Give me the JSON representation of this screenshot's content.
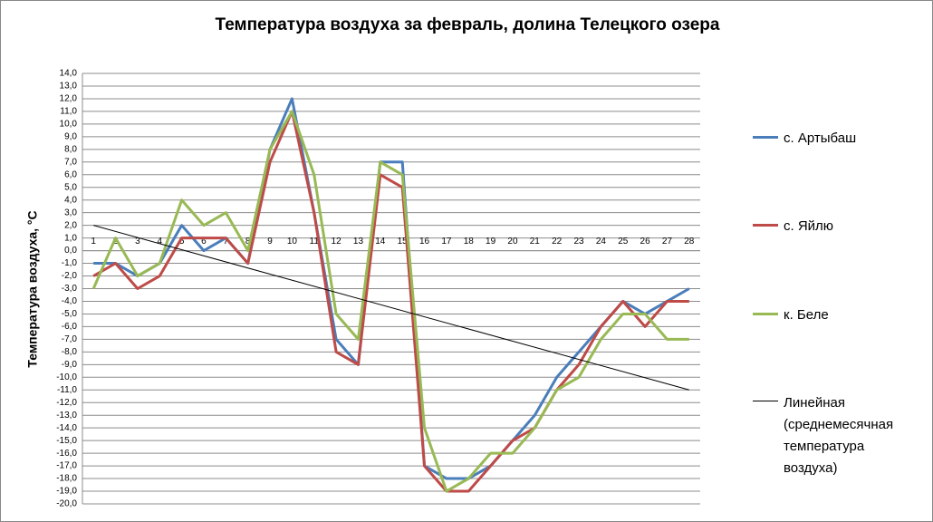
{
  "chart_data": {
    "type": "line",
    "title": "Температура воздуха за февраль, долина Телецкого озера",
    "y_label": "Температура воздуха, °С",
    "categories": [
      "1",
      "2",
      "3",
      "4",
      "5",
      "6",
      "7",
      "8",
      "9",
      "10",
      "11",
      "12",
      "13",
      "14",
      "15",
      "16",
      "17",
      "18",
      "19",
      "20",
      "21",
      "22",
      "23",
      "24",
      "25",
      "26",
      "27",
      "28"
    ],
    "series": [
      {
        "name": "с. Артыбаш",
        "color": "#4a7ebb",
        "values": [
          -1,
          -1,
          -2,
          -1,
          2,
          0,
          1,
          -1,
          8,
          12,
          3,
          -7,
          -9,
          7,
          7,
          -17,
          -18,
          -18,
          -17,
          -15,
          -13,
          -10,
          -8,
          -6,
          -4,
          -5,
          -4,
          -3
        ]
      },
      {
        "name": "с. Яйлю",
        "color": "#be4b48",
        "values": [
          -2,
          -1,
          -3,
          -2,
          1,
          1,
          1,
          -1,
          7,
          11,
          3,
          -8,
          -9,
          6,
          5,
          -17,
          -19,
          -19,
          -17,
          -15,
          -14,
          -11,
          -9,
          -6,
          -4,
          -6,
          -4,
          -4
        ]
      },
      {
        "name": "к. Беле",
        "color": "#98b954",
        "values": [
          -3,
          1,
          -2,
          -1,
          4,
          2,
          3,
          0,
          8,
          11,
          6,
          -5,
          -7,
          7,
          6,
          -14,
          -19,
          -18,
          -16,
          -16,
          -14,
          -11,
          -10,
          -7,
          -5,
          -5,
          -7,
          -7
        ]
      }
    ],
    "trendline": {
      "name": "Линейная (среднемесячная температура воздуха)",
      "color": "#000000",
      "values": [
        2,
        -11
      ]
    },
    "ylim": [
      -20,
      14
    ],
    "yticks": [
      {
        "value": 14,
        "label": "14,0"
      },
      {
        "value": 13,
        "label": "13,0"
      },
      {
        "value": 12,
        "label": "12,0"
      },
      {
        "value": 11,
        "label": "11,0"
      },
      {
        "value": 10,
        "label": "10,0"
      },
      {
        "value": 9,
        "label": "9,0"
      },
      {
        "value": 8,
        "label": "8,0"
      },
      {
        "value": 7,
        "label": "7,0"
      },
      {
        "value": 6,
        "label": "6,0"
      },
      {
        "value": 5,
        "label": "5,0"
      },
      {
        "value": 4,
        "label": "4,0"
      },
      {
        "value": 3,
        "label": "3,0"
      },
      {
        "value": 2,
        "label": "2,0"
      },
      {
        "value": 1,
        "label": "1,0"
      },
      {
        "value": 0,
        "label": "0,0"
      },
      {
        "value": -1,
        "label": "-1,0"
      },
      {
        "value": -2,
        "label": "-2,0"
      },
      {
        "value": -3,
        "label": "-3,0"
      },
      {
        "value": -4,
        "label": "-4,0"
      },
      {
        "value": -5,
        "label": "-5,0"
      },
      {
        "value": -6,
        "label": "-6,0"
      },
      {
        "value": -7,
        "label": "-7,0"
      },
      {
        "value": -8,
        "label": "-8,0"
      },
      {
        "value": -9,
        "label": "-9,0"
      },
      {
        "value": -10,
        "label": "-10,0"
      },
      {
        "value": -11,
        "label": "-11,0"
      },
      {
        "value": -12,
        "label": "-12,0"
      },
      {
        "value": -13,
        "label": "-13,0"
      },
      {
        "value": -14,
        "label": "-14,0"
      },
      {
        "value": -15,
        "label": "-15,0"
      },
      {
        "value": -16,
        "label": "-16,0"
      },
      {
        "value": -17,
        "label": "-17,0"
      },
      {
        "value": -18,
        "label": "-18,0"
      },
      {
        "value": -19,
        "label": "-19,0"
      },
      {
        "value": -20,
        "label": "-20,0"
      }
    ],
    "grid": true
  }
}
